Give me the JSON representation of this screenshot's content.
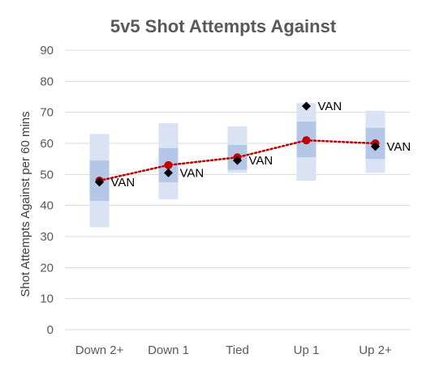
{
  "chart_data": {
    "type": "line",
    "title": "5v5 Shot Attempts Against",
    "xlabel": "",
    "ylabel": "Shot Attempts Against per 60 mins",
    "ylim": [
      0,
      90
    ],
    "yticks": [
      0,
      10,
      20,
      30,
      40,
      50,
      60,
      70,
      80,
      90
    ],
    "grid": true,
    "categories": [
      "Down 2+",
      "Down 1",
      "Tied",
      "Up 1",
      "Up 2+"
    ],
    "range_outer": [
      {
        "low": 33,
        "high": 63
      },
      {
        "low": 42,
        "high": 66.5
      },
      {
        "low": 50.5,
        "high": 65.5
      },
      {
        "low": 48,
        "high": 73
      },
      {
        "low": 50.5,
        "high": 70.5
      }
    ],
    "range_inner": [
      {
        "low": 41.5,
        "high": 54.5
      },
      {
        "low": 47.5,
        "high": 58.5
      },
      {
        "low": 51.5,
        "high": 59.5
      },
      {
        "low": 55.5,
        "high": 67
      },
      {
        "low": 55,
        "high": 65
      }
    ],
    "series": [
      {
        "values": [
          48,
          53,
          55.5,
          61,
          60
        ],
        "color": "#c00000",
        "style": "dotted-line-circle"
      },
      {
        "values": [
          47.5,
          50.5,
          54.5,
          72,
          59
        ],
        "color": "#000000",
        "style": "diamond",
        "point_label": "VAN"
      }
    ],
    "colors": {
      "outer_band": "#dae3f3",
      "inner_band": "#b4c7e7",
      "grid": "#d9d9d9"
    }
  }
}
